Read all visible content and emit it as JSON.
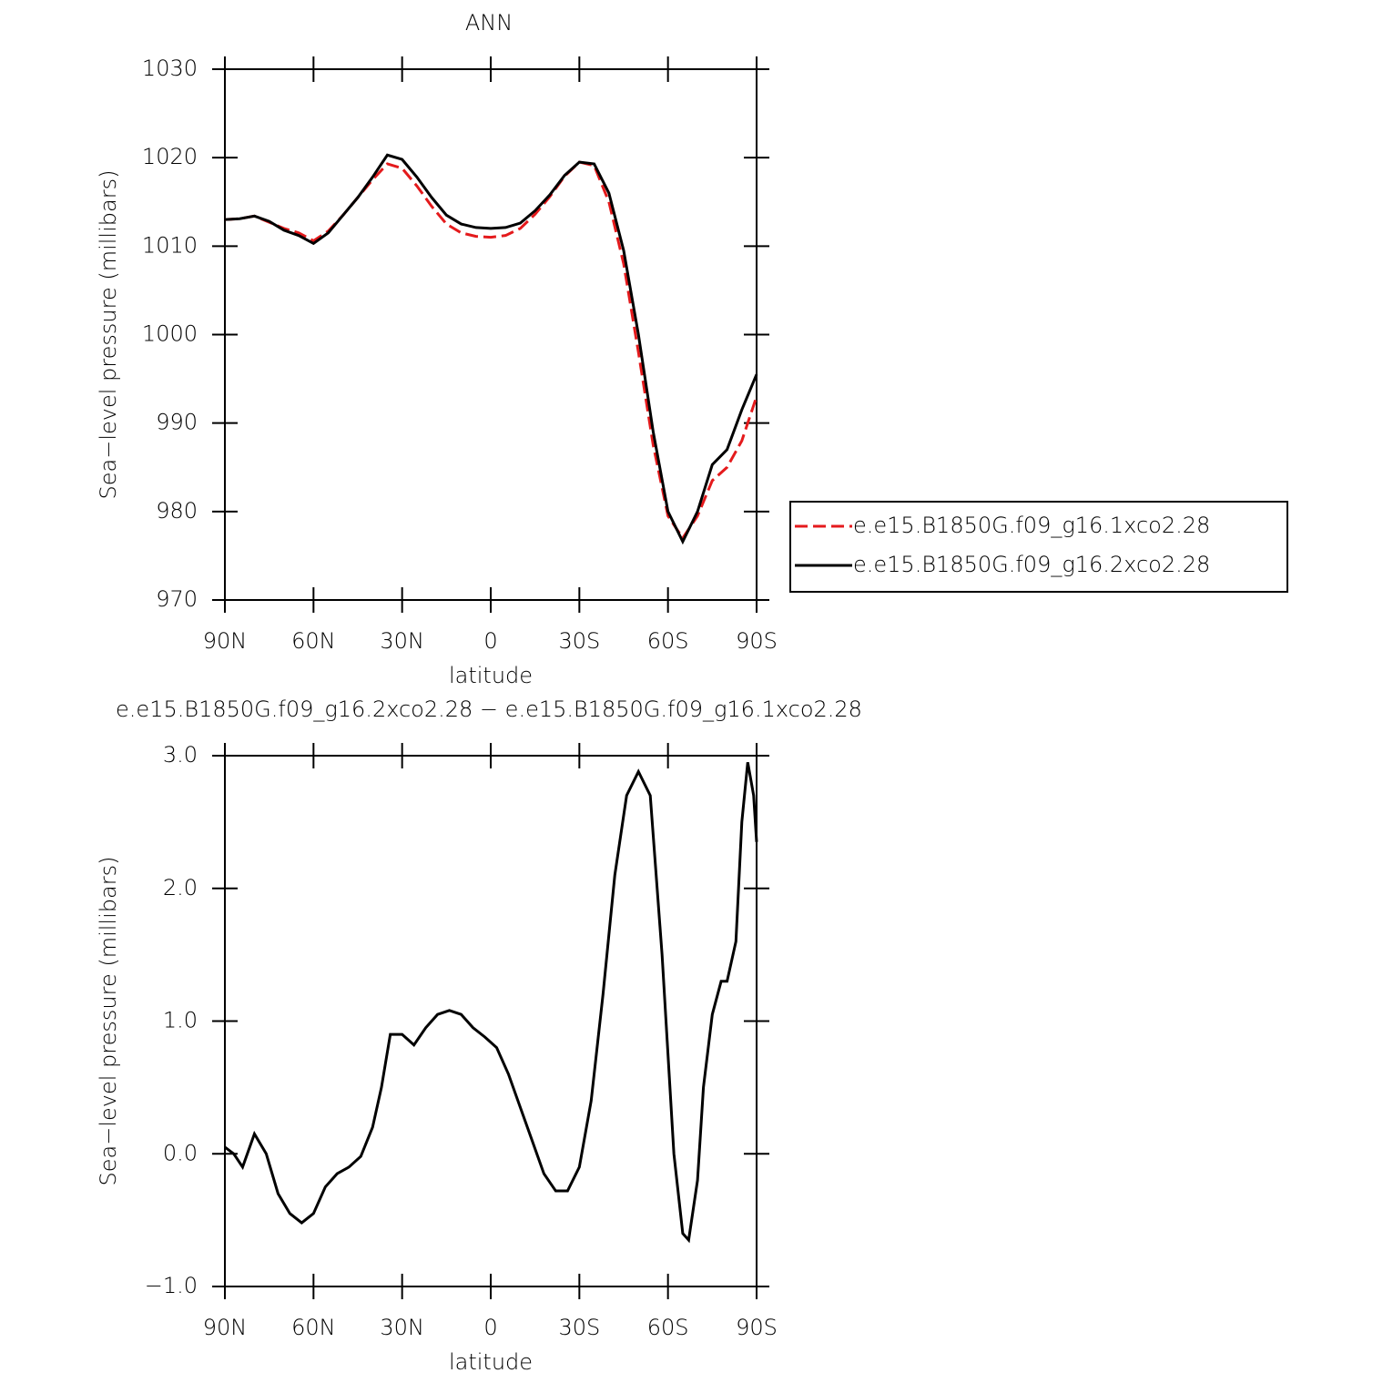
{
  "chart_data": [
    {
      "type": "line",
      "title": "ANN",
      "xlabel": "latitude",
      "ylabel": "Sea−level pressure (millibars)",
      "xlim": [
        90,
        -90
      ],
      "ylim": [
        970,
        1030
      ],
      "xticks": [
        {
          "value": 90,
          "label": "90N"
        },
        {
          "value": 60,
          "label": "60N"
        },
        {
          "value": 30,
          "label": "30N"
        },
        0,
        {
          "value": -30,
          "label": "30S"
        },
        {
          "value": -60,
          "label": "60S"
        },
        {
          "value": -90,
          "label": "90S"
        }
      ],
      "yticks": [
        970,
        980,
        990,
        1000,
        1010,
        1020,
        1030
      ],
      "legend": "right",
      "x": [
        90,
        85,
        80,
        75,
        70,
        65,
        60,
        55,
        50,
        45,
        40,
        35,
        30,
        25,
        20,
        15,
        10,
        5,
        0,
        -5,
        -10,
        -15,
        -20,
        -25,
        -30,
        -35,
        -40,
        -45,
        -50,
        -55,
        -60,
        -65,
        -70,
        -75,
        -80,
        -85,
        -90
      ],
      "series": [
        {
          "name": "e.e15.B1850G.f09_g16.1xco2.28",
          "color": "#e41a1c",
          "dash": "dashed",
          "values": [
            1013,
            1013.1,
            1013.4,
            1012.7,
            1012.0,
            1011.5,
            1010.6,
            1011.7,
            1013.5,
            1015.5,
            1017.5,
            1019.3,
            1018.8,
            1016.8,
            1014.5,
            1012.5,
            1011.5,
            1011.1,
            1011.0,
            1011.2,
            1012.0,
            1013.6,
            1015.6,
            1017.9,
            1019.5,
            1019.1,
            1015.0,
            1008,
            998,
            987.5,
            979.5,
            977,
            979.5,
            983.5,
            985,
            988,
            993
          ]
        },
        {
          "name": "e.e15.B1850G.f09_g16.2xco2.28",
          "color": "#000000",
          "dash": "solid",
          "values": [
            1013,
            1013.1,
            1013.4,
            1012.8,
            1011.8,
            1011.2,
            1010.3,
            1011.5,
            1013.5,
            1015.5,
            1017.8,
            1020.3,
            1019.8,
            1017.8,
            1015.5,
            1013.5,
            1012.5,
            1012.1,
            1012.0,
            1012.1,
            1012.6,
            1014.0,
            1015.8,
            1018.0,
            1019.5,
            1019.3,
            1016.0,
            1009.5,
            1000,
            989,
            980,
            976.6,
            980,
            985.3,
            987,
            991.5,
            995.5
          ]
        }
      ]
    },
    {
      "type": "line",
      "title": "e.e15.B1850G.f09_g16.2xco2.28 − e.e15.B1850G.f09_g16.1xco2.28",
      "xlabel": "latitude",
      "ylabel": "Sea−level pressure (millibars)",
      "xlim": [
        90,
        -90
      ],
      "ylim": [
        -1,
        3
      ],
      "xticks": [
        {
          "value": 90,
          "label": "90N"
        },
        {
          "value": 60,
          "label": "60N"
        },
        {
          "value": 30,
          "label": "30N"
        },
        0,
        {
          "value": -30,
          "label": "30S"
        },
        {
          "value": -60,
          "label": "60S"
        },
        {
          "value": -90,
          "label": "90S"
        }
      ],
      "yticks": [
        {
          "value": -1,
          "label": "−1.0"
        },
        {
          "value": 0,
          "label": "0.0"
        },
        {
          "value": 1,
          "label": "1.0"
        },
        {
          "value": 2,
          "label": "2.0"
        },
        {
          "value": 3,
          "label": "3.0"
        }
      ],
      "x": [
        90,
        87,
        84,
        80,
        76,
        72,
        68,
        64,
        60,
        56,
        52,
        48,
        44,
        40,
        37,
        34,
        30,
        26,
        22,
        18,
        14,
        10,
        6,
        2,
        -2,
        -6,
        -10,
        -14,
        -18,
        -22,
        -26,
        -30,
        -34,
        -38,
        -42,
        -46,
        -50,
        -54,
        -58,
        -62,
        -65,
        -67,
        -70,
        -72,
        -75,
        -78,
        -80,
        -83,
        -85,
        -87,
        -89,
        -90
      ],
      "series": [
        {
          "color": "#000000",
          "dash": "solid",
          "values": [
            0.05,
            0.0,
            -0.1,
            0.15,
            0.0,
            -0.3,
            -0.45,
            -0.52,
            -0.45,
            -0.25,
            -0.15,
            -0.1,
            -0.02,
            0.2,
            0.5,
            0.9,
            0.9,
            0.82,
            0.95,
            1.05,
            1.08,
            1.05,
            0.95,
            0.88,
            0.8,
            0.6,
            0.35,
            0.1,
            -0.15,
            -0.28,
            -0.28,
            -0.1,
            0.4,
            1.2,
            2.1,
            2.7,
            2.88,
            2.7,
            1.5,
            0.0,
            -0.6,
            -0.65,
            -0.2,
            0.5,
            1.05,
            1.3,
            1.3,
            1.6,
            2.5,
            2.95,
            2.7,
            2.35
          ]
        }
      ]
    }
  ]
}
